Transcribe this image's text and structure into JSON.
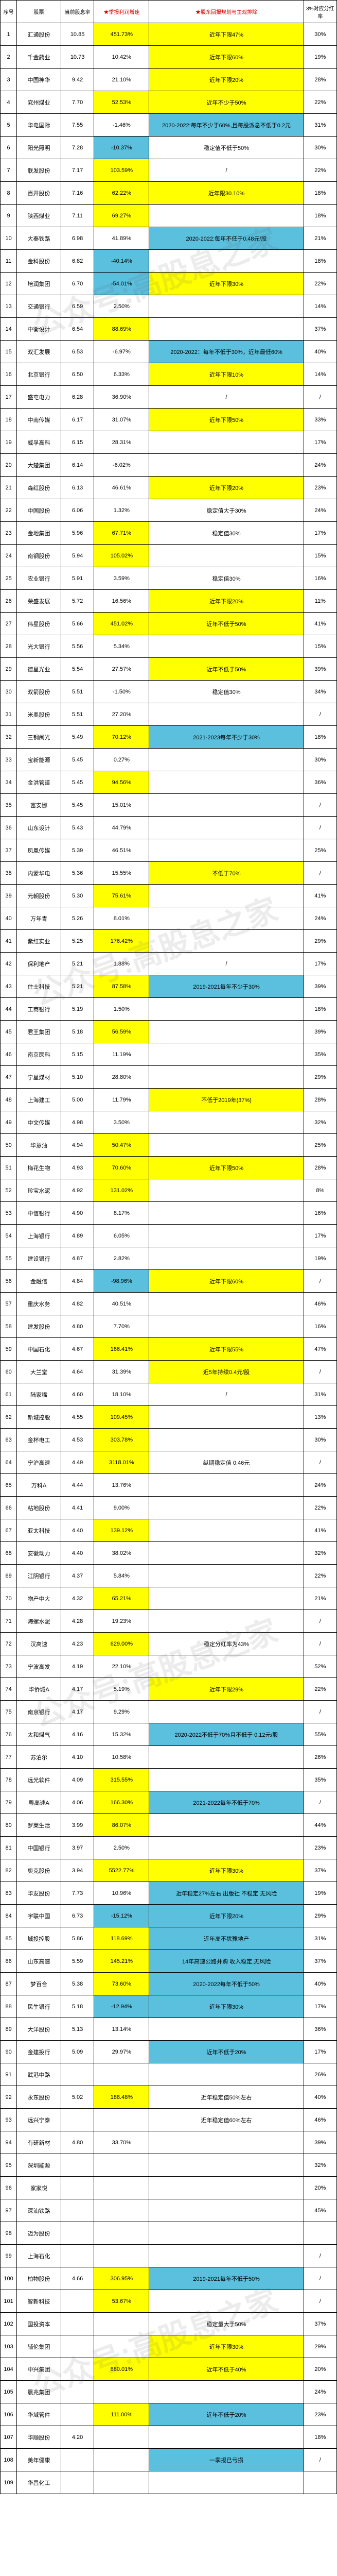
{
  "watermark": "公众号:高股息之家",
  "headers": {
    "c1": "序号",
    "c2": "股票",
    "c3": "当前股息率",
    "c4": "★季报利润增速",
    "c5": "★股东回报规划与主观排除",
    "c6": "3%对应分红率",
    "c4color": "#d00",
    "c5color": "#d00"
  },
  "rows": [
    {
      "n": "1",
      "s": "汇通股份",
      "r": "10.85",
      "g": "451.73%",
      "gc": "hy",
      "p": "近年下限47%",
      "pc": "hy",
      "d": "30%"
    },
    {
      "n": "2",
      "s": "千金药业",
      "r": "10.73",
      "g": "10.42%",
      "gc": "",
      "p": "近年下限60%",
      "pc": "hy",
      "d": "19%"
    },
    {
      "n": "3",
      "s": "中国神华",
      "r": "9.42",
      "g": "21.10%",
      "gc": "",
      "p": "近年下限20%",
      "pc": "hy",
      "d": "28%"
    },
    {
      "n": "4",
      "s": "兖州煤业",
      "r": "7.70",
      "g": "52.53%",
      "gc": "hy",
      "p": "近年不少于50%",
      "pc": "hy",
      "d": "22%"
    },
    {
      "n": "5",
      "s": "华电国际",
      "r": "7.55",
      "g": "-1.46%",
      "gc": "",
      "p": "2020-2022:每年不少于60%,且每股派息不低于0.2元",
      "pc": "hb",
      "d": "31%"
    },
    {
      "n": "6",
      "s": "阳光照明",
      "r": "7.28",
      "g": "-10.37%",
      "gc": "hb",
      "p": "稳定值不低于50%",
      "pc": "",
      "d": "30%"
    },
    {
      "n": "7",
      "s": "联发股份",
      "r": "7.17",
      "g": "103.59%",
      "gc": "hy",
      "p": "/",
      "pc": "",
      "d": "22%"
    },
    {
      "n": "8",
      "s": "百开股份",
      "r": "7.16",
      "g": "62.22%",
      "gc": "hy",
      "p": "近年限30.10%",
      "pc": "hy",
      "d": "18%"
    },
    {
      "n": "9",
      "s": "陕西煤业",
      "r": "7.11",
      "g": "69.27%",
      "gc": "hy",
      "p": "",
      "pc": "",
      "d": "18%"
    },
    {
      "n": "10",
      "s": "大秦铁路",
      "r": "6.98",
      "g": "41.89%",
      "gc": "",
      "p": "2020-2022:每年不低于0.48元/股",
      "pc": "hb",
      "d": "21%"
    },
    {
      "n": "11",
      "s": "金科股份",
      "r": "6.82",
      "g": "-40.14%",
      "gc": "hb",
      "p": "",
      "pc": "",
      "d": "18%"
    },
    {
      "n": "12",
      "s": "培润集团",
      "r": "6.70",
      "g": "-54.01%",
      "gc": "hb",
      "p": "近年下限30%",
      "pc": "hy",
      "d": "22%"
    },
    {
      "n": "13",
      "s": "交通银行",
      "r": "6.59",
      "g": "2.50%",
      "gc": "",
      "p": "",
      "pc": "",
      "d": "14%"
    },
    {
      "n": "14",
      "s": "中衡设计",
      "r": "6.54",
      "g": "88.69%",
      "gc": "hy",
      "p": "",
      "pc": "",
      "d": "37%"
    },
    {
      "n": "15",
      "s": "双汇发展",
      "r": "6.53",
      "g": "-6.97%",
      "gc": "",
      "p": "2020-2022：每年不低于30%，近年最低60%",
      "pc": "hb",
      "d": "40%"
    },
    {
      "n": "16",
      "s": "北京银行",
      "r": "6.50",
      "g": "6.33%",
      "gc": "",
      "p": "近年下限10%",
      "pc": "hy",
      "d": "14%"
    },
    {
      "n": "17",
      "s": "盛屯电力",
      "r": "6.28",
      "g": "36.90%",
      "gc": "",
      "p": "/",
      "pc": "",
      "d": "/"
    },
    {
      "n": "18",
      "s": "中南传媒",
      "r": "6.17",
      "g": "31.07%",
      "gc": "",
      "p": "近年下限50%",
      "pc": "hy",
      "d": "33%"
    },
    {
      "n": "19",
      "s": "威孚高科",
      "r": "6.15",
      "g": "28.31%",
      "gc": "",
      "p": "",
      "pc": "",
      "d": "17%"
    },
    {
      "n": "20",
      "s": "大楚集团",
      "r": "6.14",
      "g": "-6.02%",
      "gc": "",
      "p": "",
      "pc": "",
      "d": "24%"
    },
    {
      "n": "21",
      "s": "森红股份",
      "r": "6.13",
      "g": "46.61%",
      "gc": "",
      "p": "近年下限20%",
      "pc": "hy",
      "d": "23%"
    },
    {
      "n": "22",
      "s": "中国股份",
      "r": "6.06",
      "g": "1.32%",
      "gc": "",
      "p": "稳定值大于30%",
      "pc": "",
      "d": "24%"
    },
    {
      "n": "23",
      "s": "金地集团",
      "r": "5.96",
      "g": "67.71%",
      "gc": "hy",
      "p": "稳定值30%",
      "pc": "",
      "d": "17%"
    },
    {
      "n": "24",
      "s": "南钢股份",
      "r": "5.94",
      "g": "105.02%",
      "gc": "hy",
      "p": "",
      "pc": "",
      "d": "15%"
    },
    {
      "n": "25",
      "s": "农业银行",
      "r": "5.91",
      "g": "3.59%",
      "gc": "",
      "p": "稳定值30%",
      "pc": "",
      "d": "16%"
    },
    {
      "n": "26",
      "s": "荣盛发展",
      "r": "5.72",
      "g": "16.56%",
      "gc": "",
      "p": "近年下限20%",
      "pc": "hy",
      "d": "11%"
    },
    {
      "n": "27",
      "s": "伟星股份",
      "r": "5.66",
      "g": "451.02%",
      "gc": "hy",
      "p": "近年不低于50%",
      "pc": "hy",
      "d": "41%"
    },
    {
      "n": "28",
      "s": "光大银行",
      "r": "5.56",
      "g": "5.34%",
      "gc": "",
      "p": "",
      "pc": "",
      "d": "15%"
    },
    {
      "n": "29",
      "s": "德星光业",
      "r": "5.54",
      "g": "27.57%",
      "gc": "",
      "p": "近年不低于50%",
      "pc": "hy",
      "d": "39%"
    },
    {
      "n": "30",
      "s": "双箭股份",
      "r": "5.51",
      "g": "-1.50%",
      "gc": "",
      "p": "稳定值30%",
      "pc": "",
      "d": "34%"
    },
    {
      "n": "31",
      "s": "米奥股份",
      "r": "5.51",
      "g": "27.20%",
      "gc": "",
      "p": "",
      "pc": "",
      "d": "/"
    },
    {
      "n": "32",
      "s": "三钢闽光",
      "r": "5.49",
      "g": "70.12%",
      "gc": "hy",
      "p": "2021-2023每年不少于30%",
      "pc": "hb",
      "d": "18%"
    },
    {
      "n": "33",
      "s": "宝新能源",
      "r": "5.45",
      "g": "0.27%",
      "gc": "",
      "p": "",
      "pc": "",
      "d": "30%"
    },
    {
      "n": "34",
      "s": "金洪管道",
      "r": "5.45",
      "g": "94.56%",
      "gc": "hy",
      "p": "",
      "pc": "",
      "d": "36%"
    },
    {
      "n": "35",
      "s": "富安娜",
      "r": "5.45",
      "g": "15.01%",
      "gc": "",
      "p": "",
      "pc": "",
      "d": "/"
    },
    {
      "n": "36",
      "s": "山东设计",
      "r": "5.43",
      "g": "44.79%",
      "gc": "",
      "p": "",
      "pc": "",
      "d": "/"
    },
    {
      "n": "37",
      "s": "凤凰传媒",
      "r": "5.39",
      "g": "46.51%",
      "gc": "",
      "p": "",
      "pc": "",
      "d": "25%"
    },
    {
      "n": "38",
      "s": "内蒙华电",
      "r": "5.36",
      "g": "15.55%",
      "gc": "",
      "p": "不低于70%",
      "pc": "hy",
      "d": "/"
    },
    {
      "n": "39",
      "s": "元朝股份",
      "r": "5.30",
      "g": "75.61%",
      "gc": "hy",
      "p": "",
      "pc": "",
      "d": "41%"
    },
    {
      "n": "40",
      "s": "万年青",
      "r": "5.26",
      "g": "8.01%",
      "gc": "",
      "p": "",
      "pc": "",
      "d": "24%"
    },
    {
      "n": "41",
      "s": "紫红实业",
      "r": "5.25",
      "g": "176.42%",
      "gc": "hy",
      "p": "",
      "pc": "",
      "d": "29%"
    },
    {
      "n": "42",
      "s": "保利地产",
      "r": "5.21",
      "g": "1.88%",
      "gc": "",
      "p": "/",
      "pc": "",
      "d": "17%"
    },
    {
      "n": "43",
      "s": "住士科技",
      "r": "5.21",
      "g": "87.58%",
      "gc": "hy",
      "p": "2019-2021每年不少于30%",
      "pc": "hb",
      "d": "39%"
    },
    {
      "n": "44",
      "s": "工商银行",
      "r": "5.19",
      "g": "1.50%",
      "gc": "",
      "p": "",
      "pc": "",
      "d": "18%"
    },
    {
      "n": "45",
      "s": "君王集团",
      "r": "5.18",
      "g": "56.59%",
      "gc": "hy",
      "p": "",
      "pc": "",
      "d": "39%"
    },
    {
      "n": "46",
      "s": "南京医科",
      "r": "5.15",
      "g": "11.19%",
      "gc": "",
      "p": "",
      "pc": "",
      "d": "35%"
    },
    {
      "n": "47",
      "s": "宁星煤材",
      "r": "5.10",
      "g": "28.80%",
      "gc": "",
      "p": "",
      "pc": "",
      "d": "29%"
    },
    {
      "n": "48",
      "s": "上海建工",
      "r": "5.00",
      "g": "11.79%",
      "gc": "",
      "p": "不低于2019年(37%)",
      "pc": "hy",
      "d": "28%"
    },
    {
      "n": "49",
      "s": "中文传媒",
      "r": "4.98",
      "g": "3.50%",
      "gc": "",
      "p": "",
      "pc": "",
      "d": "32%"
    },
    {
      "n": "50",
      "s": "华意油",
      "r": "4.94",
      "g": "50.47%",
      "gc": "hy",
      "p": "",
      "pc": "",
      "d": "25%"
    },
    {
      "n": "51",
      "s": "梅花生物",
      "r": "4.93",
      "g": "70.60%",
      "gc": "hy",
      "p": "近年下限50%",
      "pc": "hy",
      "d": "28%"
    },
    {
      "n": "52",
      "s": "珍宝水泥",
      "r": "4.92",
      "g": "131.02%",
      "gc": "hy",
      "p": "",
      "pc": "",
      "d": "8%"
    },
    {
      "n": "53",
      "s": "中信银行",
      "r": "4.90",
      "g": "8.17%",
      "gc": "",
      "p": "",
      "pc": "",
      "d": "16%"
    },
    {
      "n": "54",
      "s": "上海银行",
      "r": "4.89",
      "g": "6.05%",
      "gc": "",
      "p": "",
      "pc": "",
      "d": "17%"
    },
    {
      "n": "55",
      "s": "建设银行",
      "r": "4.87",
      "g": "2.82%",
      "gc": "",
      "p": "",
      "pc": "",
      "d": "19%"
    },
    {
      "n": "56",
      "s": "金融信",
      "r": "4.84",
      "g": "-98.96%",
      "gc": "hb",
      "p": "近年下限60%",
      "pc": "hy",
      "d": "/"
    },
    {
      "n": "57",
      "s": "重庆水务",
      "r": "4.82",
      "g": "40.51%",
      "gc": "",
      "p": "",
      "pc": "",
      "d": "46%"
    },
    {
      "n": "58",
      "s": "建发股份",
      "r": "4.80",
      "g": "7.70%",
      "gc": "",
      "p": "",
      "pc": "",
      "d": "16%"
    },
    {
      "n": "59",
      "s": "中国石化",
      "r": "4.67",
      "g": "166.41%",
      "gc": "hy",
      "p": "近年下限55%",
      "pc": "hy",
      "d": "47%"
    },
    {
      "n": "60",
      "s": "大兰堂",
      "r": "4.64",
      "g": "31.39%",
      "gc": "",
      "p": "近5年持续0.4元/股",
      "pc": "hy",
      "d": "/"
    },
    {
      "n": "61",
      "s": "陆家嘴",
      "r": "4.60",
      "g": "18.10%",
      "gc": "",
      "p": "/",
      "pc": "",
      "d": "31%"
    },
    {
      "n": "62",
      "s": "新城控股",
      "r": "4.55",
      "g": "109.45%",
      "gc": "hy",
      "p": "",
      "pc": "",
      "d": "13%"
    },
    {
      "n": "63",
      "s": "金杯电工",
      "r": "4.53",
      "g": "303.78%",
      "gc": "hy",
      "p": "",
      "pc": "",
      "d": "30%"
    },
    {
      "n": "64",
      "s": "宁沪高速",
      "r": "4.49",
      "g": "3118.01%",
      "gc": "hy",
      "p": "纵期稳定值 0.46元",
      "pc": "",
      "d": "/"
    },
    {
      "n": "65",
      "s": "万科A",
      "r": "4.44",
      "g": "13.76%",
      "gc": "",
      "p": "",
      "pc": "",
      "d": "24%"
    },
    {
      "n": "66",
      "s": "粘地股份",
      "r": "4.41",
      "g": "9.00%",
      "gc": "",
      "p": "",
      "pc": "",
      "d": "22%"
    },
    {
      "n": "67",
      "s": "亚太科技",
      "r": "4.40",
      "g": "139.12%",
      "gc": "hy",
      "p": "",
      "pc": "",
      "d": "41%"
    },
    {
      "n": "68",
      "s": "安徽动力",
      "r": "4.40",
      "g": "38.02%",
      "gc": "",
      "p": "",
      "pc": "",
      "d": "32%"
    },
    {
      "n": "69",
      "s": "江阴银行",
      "r": "4.37",
      "g": "5.84%",
      "gc": "",
      "p": "",
      "pc": "",
      "d": "22%"
    },
    {
      "n": "70",
      "s": "物产中大",
      "r": "4.32",
      "g": "65.21%",
      "gc": "hy",
      "p": "",
      "pc": "",
      "d": "21%"
    },
    {
      "n": "71",
      "s": "海螺水泥",
      "r": "4.28",
      "g": "19.23%",
      "gc": "",
      "p": "",
      "pc": "",
      "d": "/"
    },
    {
      "n": "72",
      "s": "汉高速",
      "r": "4.23",
      "g": "629.00%",
      "gc": "hy",
      "p": "稳定分红率为43%",
      "pc": "",
      "d": "/"
    },
    {
      "n": "73",
      "s": "宁波高发",
      "r": "4.19",
      "g": "22.10%",
      "gc": "",
      "p": "",
      "pc": "",
      "d": "52%"
    },
    {
      "n": "74",
      "s": "华侨城A",
      "r": "4.17",
      "g": "5.19%",
      "gc": "",
      "p": "近年下限29%",
      "pc": "hy",
      "d": "22%"
    },
    {
      "n": "75",
      "s": "南京银行",
      "r": "4.17",
      "g": "9.29%",
      "gc": "",
      "p": "",
      "pc": "",
      "d": "/"
    },
    {
      "n": "76",
      "s": "太和煤气",
      "r": "4.16",
      "g": "15.32%",
      "gc": "",
      "p": "2020-2022不低于70%且不低于 0.12元/股",
      "pc": "hb",
      "d": "55%"
    },
    {
      "n": "77",
      "s": "苏泊尔",
      "r": "4.10",
      "g": "10.58%",
      "gc": "",
      "p": "",
      "pc": "",
      "d": "26%"
    },
    {
      "n": "78",
      "s": "远光软件",
      "r": "4.09",
      "g": "315.55%",
      "gc": "hy",
      "p": "",
      "pc": "",
      "d": "35%"
    },
    {
      "n": "79",
      "s": "粤高速A",
      "r": "4.06",
      "g": "166.30%",
      "gc": "hy",
      "p": "2021-2022每年不低于70%",
      "pc": "hb",
      "d": "/"
    },
    {
      "n": "80",
      "s": "罗莱生活",
      "r": "3.99",
      "g": "86.07%",
      "gc": "hy",
      "p": "",
      "pc": "",
      "d": "44%"
    },
    {
      "n": "81",
      "s": "中国银行",
      "r": "3.97",
      "g": "2.50%",
      "gc": "",
      "p": "",
      "pc": "",
      "d": "23%"
    },
    {
      "n": "82",
      "s": "奥克股份",
      "r": "3.94",
      "g": "5522.77%",
      "gc": "hy",
      "p": "近年下限30%",
      "pc": "hy",
      "d": "37%"
    },
    {
      "n": "83",
      "s": "华友股份",
      "r": "7.73",
      "g": "10.96%",
      "gc": "",
      "p": "近年稳定27%左右 出版社 不稳定 无风险",
      "pc": "hb",
      "d": "19%"
    },
    {
      "n": "84",
      "s": "宇联中国",
      "r": "6.73",
      "g": "-15.12%",
      "gc": "hb",
      "p": "近年下限20%",
      "pc": "hb",
      "d": "29%"
    },
    {
      "n": "85",
      "s": "城投控股",
      "r": "5.86",
      "g": "118.69%",
      "gc": "hy",
      "p": "近年高不犹豫地产",
      "pc": "hb",
      "d": "31%"
    },
    {
      "n": "86",
      "s": "山东高速",
      "r": "5.59",
      "g": "145.21%",
      "gc": "hy",
      "p": "14年高速公路并购 收入稳定,无风险",
      "pc": "hb",
      "d": "37%"
    },
    {
      "n": "87",
      "s": "梦百合",
      "r": "5.38",
      "g": "73.60%",
      "gc": "hy",
      "p": "2020-2022每年不低于50%",
      "pc": "hb",
      "d": "40%"
    },
    {
      "n": "88",
      "s": "民生银行",
      "r": "5.18",
      "g": "-12.94%",
      "gc": "hb",
      "p": "近年下限30%",
      "pc": "hb",
      "d": "17%"
    },
    {
      "n": "89",
      "s": "大洋股份",
      "r": "5.13",
      "g": "13.14%",
      "gc": "",
      "p": "",
      "pc": "",
      "d": "36%"
    },
    {
      "n": "90",
      "s": "金建投行",
      "r": "5.09",
      "g": "29.97%",
      "gc": "",
      "p": "近年不低于20%",
      "pc": "hb",
      "d": "17%"
    },
    {
      "n": "91",
      "s": "武港中路",
      "r": "",
      "g": "",
      "gc": "",
      "p": "",
      "pc": "",
      "d": "26%"
    },
    {
      "n": "92",
      "s": "永东股份",
      "r": "5.02",
      "g": "188.48%",
      "gc": "hy",
      "p": "近年稳定值50%左右",
      "pc": "",
      "d": "40%"
    },
    {
      "n": "93",
      "s": "远兴宁泰",
      "r": "",
      "g": "",
      "gc": "",
      "p": "近年稳定值60%左右",
      "pc": "",
      "d": "46%"
    },
    {
      "n": "94",
      "s": "有研新材",
      "r": "4.80",
      "g": "33.70%",
      "gc": "",
      "p": "",
      "pc": "",
      "d": "39%"
    },
    {
      "n": "95",
      "s": "深圳能源",
      "r": "",
      "g": "",
      "gc": "",
      "p": "",
      "pc": "",
      "d": "32%"
    },
    {
      "n": "96",
      "s": "家家悦",
      "r": "",
      "g": "",
      "gc": "",
      "p": "",
      "pc": "",
      "d": "20%"
    },
    {
      "n": "97",
      "s": "深汕铁路",
      "r": "",
      "g": "",
      "gc": "",
      "p": "",
      "pc": "",
      "d": "45%"
    },
    {
      "n": "98",
      "s": "迈为股份",
      "r": "",
      "g": "",
      "gc": "",
      "p": "",
      "pc": "",
      "d": ""
    },
    {
      "n": "99",
      "s": "上海石化",
      "r": "",
      "g": "",
      "gc": "",
      "p": "",
      "pc": "",
      "d": "/"
    },
    {
      "n": "100",
      "s": "柏物股份",
      "r": "4.66",
      "g": "306.95%",
      "gc": "hy",
      "p": "2019-2021每年不低于50%",
      "pc": "hb",
      "d": "/"
    },
    {
      "n": "101",
      "s": "智新科技",
      "r": "",
      "g": "53.67%",
      "gc": "hy",
      "p": "",
      "pc": "",
      "d": "/"
    },
    {
      "n": "102",
      "s": "国投资本",
      "r": "",
      "g": "",
      "gc": "",
      "p": "稳定量大于50%",
      "pc": "",
      "d": "37%"
    },
    {
      "n": "103",
      "s": "辅伦集团",
      "r": "",
      "g": "",
      "gc": "",
      "p": "近年下限30%",
      "pc": "hy",
      "d": "29%"
    },
    {
      "n": "104",
      "s": "中兴集团",
      "r": "",
      "g": "880.01%",
      "gc": "hy",
      "p": "近年不低于40%",
      "pc": "hy",
      "d": "20%"
    },
    {
      "n": "105",
      "s": "晨兆集团",
      "r": "",
      "g": "",
      "gc": "",
      "p": "",
      "pc": "",
      "d": "24%"
    },
    {
      "n": "106",
      "s": "华域管件",
      "r": "",
      "g": "111.00%",
      "gc": "hy",
      "p": "近年不低于20%",
      "pc": "hb",
      "d": "23%"
    },
    {
      "n": "107",
      "s": "华顺股份",
      "r": "4.20",
      "g": "",
      "gc": "",
      "p": "",
      "pc": "",
      "d": "18%"
    },
    {
      "n": "108",
      "s": "美年健康",
      "r": "",
      "g": "",
      "gc": "",
      "p": "一季报已亏损",
      "pc": "hb",
      "d": "/"
    },
    {
      "n": "109",
      "s": "华昌化工",
      "r": "",
      "g": "",
      "gc": "",
      "p": "",
      "pc": "",
      "d": ""
    }
  ]
}
